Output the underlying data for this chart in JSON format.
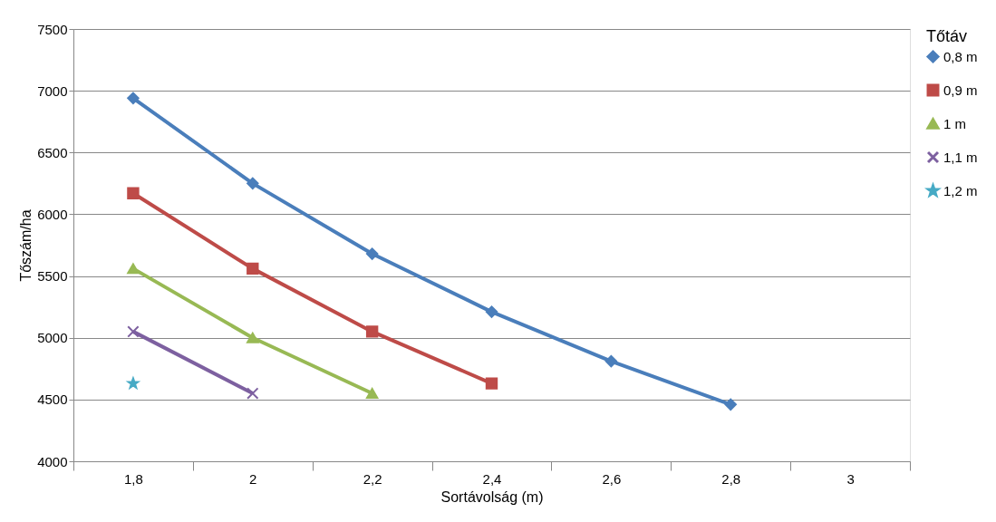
{
  "chart_data": {
    "type": "line",
    "xlabel": "Sortávolság (m)",
    "ylabel": "Tőszám/ha",
    "legend_title": "Tőtáv",
    "legend": "right",
    "grid": "y",
    "line_style": "solid",
    "categories": [
      "1,8",
      "2",
      "2,2",
      "2,4",
      "2,6",
      "2,8",
      "3"
    ],
    "ylim": [
      4000,
      7500
    ],
    "yticks": [
      4000,
      4500,
      5000,
      5500,
      6000,
      6500,
      7000,
      7500
    ],
    "series": [
      {
        "name": "0,8 m",
        "color": "#4a7ebb",
        "marker": "diamond",
        "values": [
          6940,
          6250,
          5680,
          5210,
          4810,
          4460,
          null
        ]
      },
      {
        "name": "0,9 m",
        "color": "#be4b48",
        "marker": "square",
        "values": [
          6170,
          5560,
          5050,
          4630,
          null,
          null,
          null
        ]
      },
      {
        "name": "1 m",
        "color": "#98b954",
        "marker": "triangle",
        "values": [
          5560,
          5000,
          4550,
          null,
          null,
          null,
          null
        ]
      },
      {
        "name": "1,1 m",
        "color": "#7d60a0",
        "marker": "cross",
        "values": [
          5050,
          4550,
          null,
          null,
          null,
          null,
          null
        ]
      },
      {
        "name": "1,2 m",
        "color": "#46aac5",
        "marker": "star",
        "values": [
          4630,
          null,
          null,
          null,
          null,
          null,
          null
        ]
      }
    ]
  }
}
